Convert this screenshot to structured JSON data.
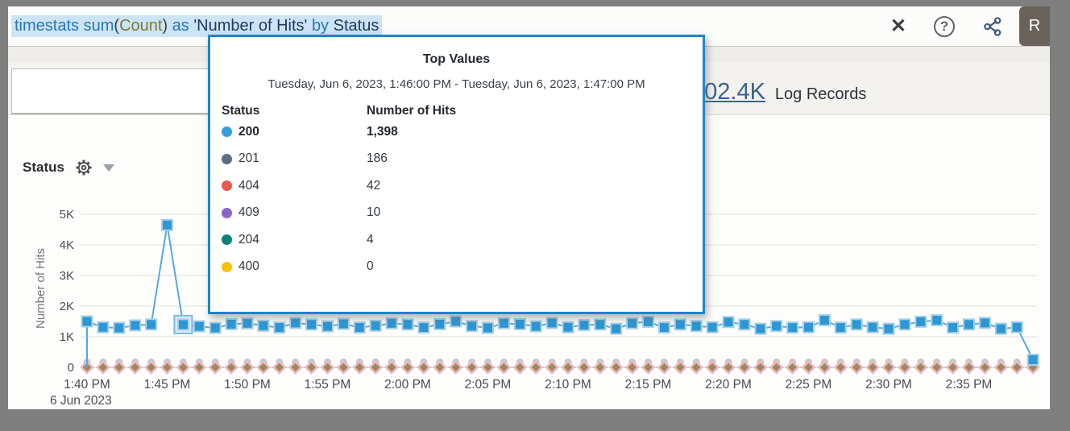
{
  "query_bar": {
    "full_query": "timestats sum(Count) as 'Number of Hits' by Status",
    "tokens": [
      {
        "text": "timestats",
        "color": "#2778b6"
      },
      {
        "text": " ",
        "color": "#3d3d3d"
      },
      {
        "text": "sum",
        "color": "#2778b6"
      },
      {
        "text": "(",
        "color": "#3d3d3d"
      },
      {
        "text": "Count",
        "color": "#7d7c30"
      },
      {
        "text": ")",
        "color": "#3d3d3d"
      },
      {
        "text": " ",
        "color": "#3d3d3d"
      },
      {
        "text": "as",
        "color": "#2778b6"
      },
      {
        "text": " ",
        "color": "#3d3d3d"
      },
      {
        "text": "'Number of Hits'",
        "color": "#1d3a5f"
      },
      {
        "text": " ",
        "color": "#3d3d3d"
      },
      {
        "text": "by",
        "color": "#2778b6"
      },
      {
        "text": " ",
        "color": "#3d3d3d"
      },
      {
        "text": "Status",
        "color": "#1d3a5f"
      }
    ],
    "selection_color": "#cde4f6"
  },
  "toolbar": {
    "close_label": "✕",
    "help_label": "?",
    "share_icon": "share",
    "run_label": "R"
  },
  "summary": {
    "count": "102.4K",
    "label": "Log Records"
  },
  "chart_header": {
    "title": "Status"
  },
  "tooltip": {
    "title": "Top Values",
    "time_range": "Tuesday, Jun 6, 2023, 1:46:00 PM - Tuesday, Jun 6, 2023, 1:47:00 PM",
    "columns": [
      "Status",
      "Number of Hits"
    ],
    "rows": [
      {
        "status": "200",
        "hits": "1,398",
        "color": "#35a0dd",
        "bold": true
      },
      {
        "status": "201",
        "hits": "186",
        "color": "#5d6e7f",
        "bold": false
      },
      {
        "status": "404",
        "hits": "42",
        "color": "#e65b4d",
        "bold": false
      },
      {
        "status": "409",
        "hits": "10",
        "color": "#8a64c9",
        "bold": false
      },
      {
        "status": "204",
        "hits": "4",
        "color": "#0c8174",
        "bold": false
      },
      {
        "status": "400",
        "hits": "0",
        "color": "#f6c20a",
        "bold": false
      }
    ],
    "border_color": "#1c86c8"
  },
  "chart_data": {
    "type": "line",
    "title": "Status",
    "ylabel": "Number of Hits",
    "ylim": [
      0,
      5000
    ],
    "yticks": [
      "0",
      "1K",
      "2K",
      "3K",
      "4K",
      "5K"
    ],
    "xticks": [
      "1:40 PM",
      "1:45 PM",
      "1:50 PM",
      "1:55 PM",
      "2:00 PM",
      "2:05 PM",
      "2:10 PM",
      "2:15 PM",
      "2:20 PM",
      "2:25 PM",
      "2:30 PM",
      "2:35 PM"
    ],
    "date_label": "6 Jun 2023",
    "minutes_per_point": 1,
    "series": [
      {
        "name": "200",
        "color": "#2e96d3",
        "line_color": "#57a9dc",
        "marker": "square",
        "values": [
          1500,
          1310,
          1290,
          1370,
          1400,
          4650,
          1398,
          1340,
          1290,
          1410,
          1440,
          1360,
          1300,
          1450,
          1400,
          1340,
          1420,
          1300,
          1360,
          1440,
          1400,
          1300,
          1410,
          1500,
          1350,
          1290,
          1440,
          1410,
          1340,
          1450,
          1310,
          1380,
          1400,
          1260,
          1440,
          1490,
          1300,
          1400,
          1350,
          1310,
          1480,
          1400,
          1260,
          1350,
          1300,
          1310,
          1540,
          1300,
          1400,
          1310,
          1260,
          1400,
          1490,
          1540,
          1300,
          1400,
          1450,
          1260,
          1310,
          250
        ]
      }
    ],
    "zero_series": {
      "names": [
        "201",
        "404",
        "409",
        "204",
        "400"
      ],
      "colors": [
        "#5d6e7f",
        "#e65b4d",
        "#8a64c9",
        "#0c8174",
        "#f6c20a"
      ],
      "value": 0,
      "note": "constant ~0 across all minutes, drawn as overlapping markers at baseline"
    },
    "selected_point": {
      "index": 6,
      "value": 1398,
      "time": "1:46 PM"
    },
    "grid": true,
    "legend_position": "none"
  },
  "colors": {
    "frame": "#7f7f7f",
    "accent_blue": "#2e96d3",
    "grid": "#e7e5e2",
    "axis_text": "#4c4c4c",
    "zero_cluster_circle": "#c8c8c8",
    "zero_cluster_diamond": "#9c8a5a",
    "zero_cluster_halo": "#edb8c6"
  }
}
